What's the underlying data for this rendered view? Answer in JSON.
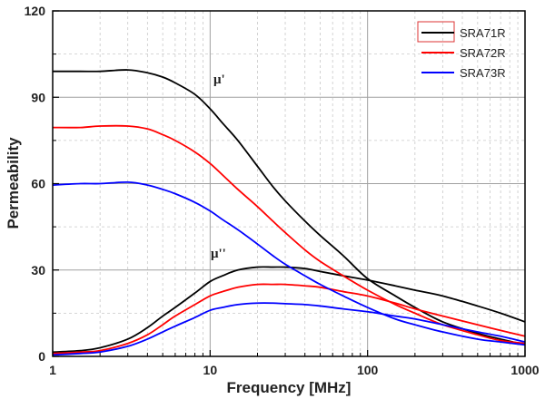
{
  "chart_data": {
    "type": "line",
    "xscale": "log",
    "xlim": [
      1,
      1000
    ],
    "ylim": [
      0,
      120
    ],
    "xticks": [
      1,
      10,
      100,
      1000
    ],
    "yticks": [
      0,
      30,
      60,
      90,
      120
    ],
    "xlabel": "Frequency [MHz]",
    "ylabel": "Permeability",
    "grid": true,
    "legend_position": "top-right",
    "annotations": [
      {
        "text": "μ'",
        "x": 11,
        "y": 95
      },
      {
        "text": "μ''",
        "x": 11,
        "y": 33
      }
    ],
    "series": [
      {
        "name": "SRA71R",
        "color": "#000000",
        "curves": [
          {
            "part": "μ'",
            "x": [
              1,
              1.5,
              2,
              3,
              4,
              5,
              6,
              8,
              10,
              12,
              15,
              20,
              25,
              30,
              40,
              50,
              70,
              100,
              150,
              200,
              300,
              500,
              700,
              1000
            ],
            "y": [
              99,
              99,
              99,
              99.5,
              98.5,
              97,
              95,
              91,
              86,
              81,
              75,
              66,
              59,
              54,
              47,
              42,
              35,
              27,
              21,
              17,
              12,
              8,
              6,
              4
            ]
          },
          {
            "part": "μ''",
            "x": [
              1,
              1.5,
              2,
              3,
              4,
              5,
              6,
              8,
              10,
              12,
              15,
              20,
              25,
              30,
              40,
              50,
              70,
              100,
              150,
              200,
              300,
              500,
              700,
              1000
            ],
            "y": [
              1.5,
              2,
              3,
              6,
              10,
              14,
              17,
              22,
              26,
              28,
              30,
              31,
              31,
              31,
              30.5,
              29.5,
              28,
              26.5,
              24.5,
              23,
              21,
              17.5,
              15,
              12
            ]
          }
        ]
      },
      {
        "name": "SRA72R",
        "color": "#ff0000",
        "curves": [
          {
            "part": "μ'",
            "x": [
              1,
              1.5,
              2,
              3,
              4,
              5,
              6,
              8,
              10,
              12,
              15,
              20,
              25,
              30,
              40,
              50,
              70,
              100,
              150,
              200,
              300,
              500,
              700,
              1000
            ],
            "y": [
              79.5,
              79.5,
              80,
              80,
              79,
              77,
              75,
              71,
              67,
              63,
              58,
              52,
              47,
              43,
              37,
              33,
              28,
              23,
              18,
              15,
              11,
              7.5,
              5.5,
              4.5
            ]
          },
          {
            "part": "μ''",
            "x": [
              1,
              1.5,
              2,
              3,
              4,
              5,
              6,
              8,
              10,
              12,
              15,
              20,
              25,
              30,
              40,
              50,
              70,
              100,
              150,
              200,
              300,
              500,
              700,
              1000
            ],
            "y": [
              1,
              1.5,
              2,
              4.5,
              7.5,
              11,
              14,
              18,
              21,
              22.5,
              24,
              25,
              25,
              25,
              24.5,
              24,
              22.5,
              21,
              18.5,
              16.5,
              14,
              11,
              9,
              7
            ]
          }
        ]
      },
      {
        "name": "SRA73R",
        "color": "#0000ff",
        "curves": [
          {
            "part": "μ'",
            "x": [
              1,
              1.5,
              2,
              3,
              4,
              5,
              6,
              8,
              10,
              12,
              15,
              20,
              25,
              30,
              40,
              50,
              70,
              100,
              150,
              200,
              300,
              500,
              700,
              1000
            ],
            "y": [
              59.5,
              60,
              60,
              60.5,
              59.5,
              58,
              56.5,
              53.5,
              50.5,
              47.5,
              44,
              39,
              35,
              32,
              28,
              25,
              21,
              17,
              13,
              11,
              8.5,
              6,
              5,
              4
            ]
          },
          {
            "part": "μ''",
            "x": [
              1,
              1.5,
              2,
              3,
              4,
              5,
              6,
              8,
              10,
              12,
              15,
              20,
              25,
              30,
              40,
              50,
              70,
              100,
              150,
              200,
              300,
              500,
              700,
              1000
            ],
            "y": [
              0.5,
              1,
              1.5,
              3.5,
              6,
              8.5,
              10.5,
              13.5,
              16,
              17,
              18,
              18.5,
              18.5,
              18.3,
              18,
              17.5,
              16.5,
              15.5,
              14,
              13,
              11,
              8.5,
              7,
              5
            ]
          }
        ]
      }
    ]
  }
}
